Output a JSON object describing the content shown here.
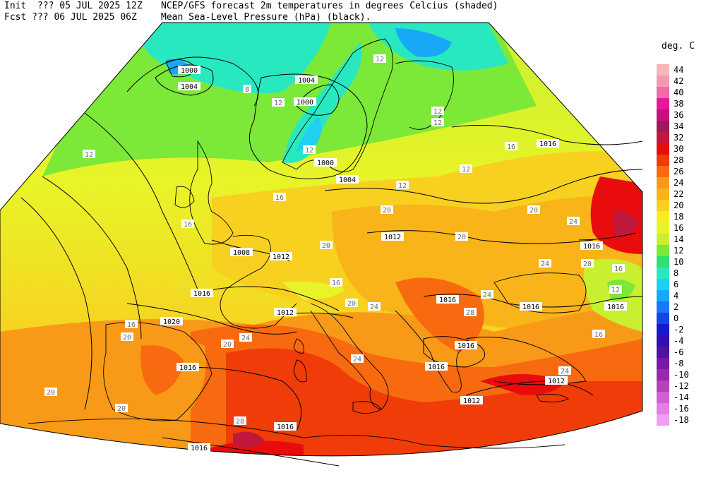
{
  "header": {
    "line1_left": "Init  ??? 05 JUL 2025 12Z",
    "line2_left": "Fcst ??? 06 JUL 2025 06Z",
    "line1_right": "NCEP/GFS forecast 2m temperatures in degrees Celcius (shaded)",
    "line2_right": "Mean Sea-Level Pressure (hPa) (black)."
  },
  "legend": {
    "title": "deg. C",
    "items": [
      {
        "label": "44",
        "color": "#f4b8b8"
      },
      {
        "label": "42",
        "color": "#f29ab4"
      },
      {
        "label": "40",
        "color": "#f06aa8"
      },
      {
        "label": "38",
        "color": "#e8189c"
      },
      {
        "label": "36",
        "color": "#c8107c"
      },
      {
        "label": "34",
        "color": "#a0185c"
      },
      {
        "label": "32",
        "color": "#c0183c"
      },
      {
        "label": "30",
        "color": "#e80c0c"
      },
      {
        "label": "28",
        "color": "#f03c08"
      },
      {
        "label": "26",
        "color": "#f86a10"
      },
      {
        "label": "24",
        "color": "#f89a18"
      },
      {
        "label": "22",
        "color": "#f8b418"
      },
      {
        "label": "20",
        "color": "#f8d020"
      },
      {
        "label": "18",
        "color": "#f8ec20"
      },
      {
        "label": "16",
        "color": "#e8f428"
      },
      {
        "label": "14",
        "color": "#c8f030"
      },
      {
        "label": "12",
        "color": "#7ce838"
      },
      {
        "label": "10",
        "color": "#30e070"
      },
      {
        "label": "8",
        "color": "#28e8c0"
      },
      {
        "label": "6",
        "color": "#20d0f0"
      },
      {
        "label": "4",
        "color": "#18a8f8"
      },
      {
        "label": "2",
        "color": "#1878f8"
      },
      {
        "label": "0",
        "color": "#1048e8"
      },
      {
        "label": "-2",
        "color": "#1818d0"
      },
      {
        "label": "-4",
        "color": "#3010b0"
      },
      {
        "label": "-6",
        "color": "#5010a0"
      },
      {
        "label": "-8",
        "color": "#7818a8"
      },
      {
        "label": "-10",
        "color": "#9828b0"
      },
      {
        "label": "-12",
        "color": "#b840b8"
      },
      {
        "label": "-14",
        "color": "#d060d0"
      },
      {
        "label": "-16",
        "color": "#e080e0"
      },
      {
        "label": "-18",
        "color": "#f0a0f0"
      }
    ]
  },
  "map": {
    "isobar_labels": [
      {
        "text": "1000"
      },
      {
        "text": "1004"
      },
      {
        "text": "1004"
      },
      {
        "text": "1000"
      },
      {
        "text": "1000"
      },
      {
        "text": "1004"
      },
      {
        "text": "1008"
      },
      {
        "text": "1012"
      },
      {
        "text": "1012"
      },
      {
        "text": "1016"
      },
      {
        "text": "1016"
      },
      {
        "text": "1016"
      },
      {
        "text": "1016"
      },
      {
        "text": "1016"
      },
      {
        "text": "1016"
      },
      {
        "text": "1016"
      },
      {
        "text": "1016"
      },
      {
        "text": "1016"
      },
      {
        "text": "1012"
      },
      {
        "text": "1012"
      },
      {
        "text": "1020"
      },
      {
        "text": "1016"
      },
      {
        "text": "1012"
      },
      {
        "text": "1016"
      }
    ],
    "temp_labels": [
      {
        "text": "12"
      },
      {
        "text": "8"
      },
      {
        "text": "12"
      },
      {
        "text": "12"
      },
      {
        "text": "12"
      },
      {
        "text": "12"
      },
      {
        "text": "12"
      },
      {
        "text": "12"
      },
      {
        "text": "16"
      },
      {
        "text": "16"
      },
      {
        "text": "16"
      },
      {
        "text": "12"
      },
      {
        "text": "20"
      },
      {
        "text": "20"
      },
      {
        "text": "20"
      },
      {
        "text": "20"
      },
      {
        "text": "16"
      },
      {
        "text": "20"
      },
      {
        "text": "24"
      },
      {
        "text": "24"
      },
      {
        "text": "20"
      },
      {
        "text": "20"
      },
      {
        "text": "20"
      },
      {
        "text": "24"
      },
      {
        "text": "28"
      },
      {
        "text": "24"
      },
      {
        "text": "16"
      },
      {
        "text": "20"
      },
      {
        "text": "16"
      },
      {
        "text": "24"
      },
      {
        "text": "28"
      },
      {
        "text": "24"
      },
      {
        "text": "16"
      },
      {
        "text": "20"
      },
      {
        "text": "12"
      },
      {
        "text": "24"
      }
    ]
  }
}
